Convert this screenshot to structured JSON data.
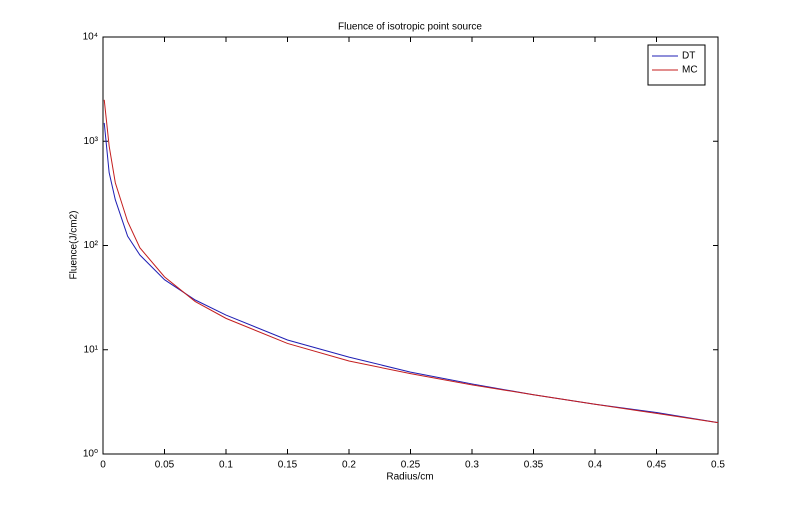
{
  "chart_data": {
    "type": "line",
    "title": "Fluence of isotropic point source",
    "x_label": "Radius/cm",
    "y_label": "Fluence(J/cm2)",
    "x": [
      0.001,
      0.005,
      0.01,
      0.02,
      0.03,
      0.05,
      0.075,
      0.1,
      0.15,
      0.2,
      0.25,
      0.3,
      0.35,
      0.4,
      0.45,
      0.5
    ],
    "series": [
      {
        "name": "DT",
        "color": "#1f1fb4",
        "values": [
          1500,
          500,
          275,
          123,
          81,
          47,
          30,
          21.5,
          12.4,
          8.5,
          6.1,
          4.7,
          3.7,
          3.0,
          2.5,
          2.0
        ]
      },
      {
        "name": "MC",
        "color": "#c41e1e",
        "values": [
          2500,
          900,
          400,
          170,
          95,
          50,
          29,
          20,
          11.5,
          7.8,
          5.9,
          4.6,
          3.7,
          3.0,
          2.45,
          2.0
        ]
      }
    ],
    "xlim": [
      0,
      0.5
    ],
    "xticks": [
      0,
      0.05,
      0.1,
      0.15,
      0.2,
      0.25,
      0.3,
      0.35,
      0.4,
      0.45,
      0.5
    ],
    "ylim": [
      1,
      10000
    ],
    "yscale": "log",
    "yticks": [
      {
        "value": 1,
        "label": "10⁰"
      },
      {
        "value": 10,
        "label": "10¹"
      },
      {
        "value": 100,
        "label": "10²"
      },
      {
        "value": 1000,
        "label": "10³"
      },
      {
        "value": 10000,
        "label": "10⁴"
      }
    ],
    "grid": false,
    "legend": "top-right"
  }
}
